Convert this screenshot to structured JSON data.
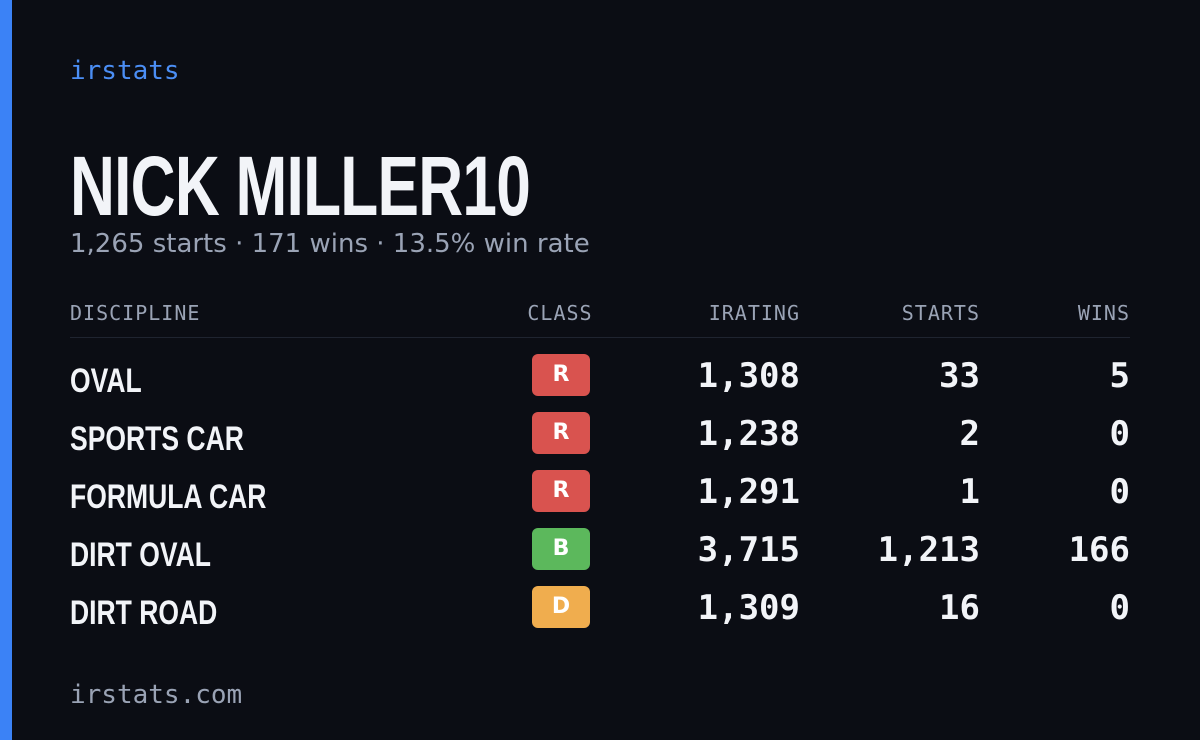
{
  "brand": "irstats",
  "driver": {
    "name": "NICK MILLER10",
    "summary": "1,265 starts · 171 wins · 13.5% win rate"
  },
  "table": {
    "headers": [
      "DISCIPLINE",
      "CLASS",
      "IRATING",
      "STARTS",
      "WINS"
    ],
    "rows": [
      {
        "discipline": "OVAL",
        "class": "R",
        "class_color": "#d9534f",
        "irating": "1,308",
        "starts": "33",
        "wins": "5"
      },
      {
        "discipline": "SPORTS CAR",
        "class": "R",
        "class_color": "#d9534f",
        "irating": "1,238",
        "starts": "2",
        "wins": "0"
      },
      {
        "discipline": "FORMULA CAR",
        "class": "R",
        "class_color": "#d9534f",
        "irating": "1,291",
        "starts": "1",
        "wins": "0"
      },
      {
        "discipline": "DIRT OVAL",
        "class": "B",
        "class_color": "#5cb85c",
        "irating": "3,715",
        "starts": "1,213",
        "wins": "166"
      },
      {
        "discipline": "DIRT ROAD",
        "class": "D",
        "class_color": "#f0ad4e",
        "irating": "1,309",
        "starts": "16",
        "wins": "0"
      }
    ]
  },
  "footer": "irstats.com"
}
